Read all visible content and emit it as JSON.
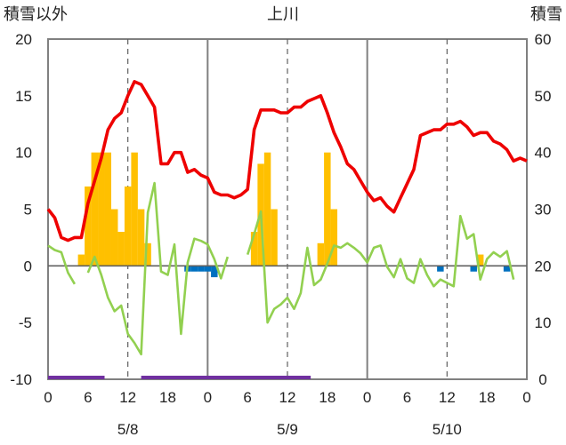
{
  "chart_data": {
    "type": "combo",
    "title": "上川",
    "left_axis_title": "積雪以外",
    "right_axis_title": "積雪",
    "left_ylim": [
      -10,
      20
    ],
    "right_ylim": [
      0,
      60
    ],
    "left_ticks": [
      "20",
      "15",
      "10",
      "5",
      "0",
      "-5",
      "-10"
    ],
    "right_ticks": [
      "60",
      "50",
      "40",
      "30",
      "20",
      "10",
      "0"
    ],
    "x_range_hours": [
      0,
      72
    ],
    "x_ticks": [
      {
        "h": 0,
        "label": "0"
      },
      {
        "h": 6,
        "label": "6"
      },
      {
        "h": 12,
        "label": "12"
      },
      {
        "h": 18,
        "label": "18"
      },
      {
        "h": 24,
        "label": "0"
      },
      {
        "h": 30,
        "label": "6"
      },
      {
        "h": 36,
        "label": "12"
      },
      {
        "h": 42,
        "label": "18"
      },
      {
        "h": 48,
        "label": "0"
      },
      {
        "h": 54,
        "label": "6"
      },
      {
        "h": 60,
        "label": "12"
      },
      {
        "h": 66,
        "label": "18"
      },
      {
        "h": 72,
        "label": "0"
      }
    ],
    "dates": [
      {
        "h": 12,
        "label": "5/8"
      },
      {
        "h": 36,
        "label": "5/9"
      },
      {
        "h": 60,
        "label": "5/10"
      }
    ],
    "day_boundaries_h": [
      24,
      48
    ],
    "noon_lines_h": [
      12,
      36,
      60
    ],
    "series": [
      {
        "name": "snow_depth",
        "type": "line",
        "axis": "right",
        "color": "#ee0000",
        "x": [
          0,
          1,
          2,
          3,
          4,
          5,
          6,
          7,
          8,
          9,
          10,
          11,
          12,
          13,
          14,
          15,
          16,
          17,
          18,
          19,
          20,
          21,
          22,
          23,
          24,
          25,
          26,
          27,
          28,
          29,
          30,
          31,
          32,
          33,
          34,
          35,
          36,
          37,
          38,
          39,
          40,
          41,
          42,
          43,
          44,
          45,
          46,
          47,
          48,
          49,
          50,
          51,
          52,
          53,
          54,
          55,
          56,
          57,
          58,
          59,
          60,
          61,
          62,
          63,
          64,
          65,
          66,
          67,
          68,
          69,
          70,
          71,
          72
        ],
        "values": [
          30,
          28.5,
          25,
          24.5,
          25,
          25,
          31,
          35,
          39,
          44,
          46,
          47,
          50,
          52.5,
          52,
          50,
          48,
          38,
          38,
          40,
          40,
          36.5,
          37,
          36,
          35.5,
          33,
          32.5,
          32.5,
          32,
          32.5,
          33.5,
          44,
          47.5,
          47.5,
          47.5,
          47,
          47,
          48,
          48,
          49,
          49.5,
          50,
          47,
          43.5,
          41,
          38,
          37,
          35,
          33,
          31.5,
          32,
          30.5,
          29.5,
          32,
          34.5,
          37,
          43,
          43.5,
          44,
          44,
          45,
          45,
          45.5,
          44.5,
          43,
          43.5,
          43.5,
          42,
          41.5,
          40.5,
          38.5,
          39,
          38.5
        ]
      },
      {
        "name": "wind_speed",
        "type": "line",
        "axis": "left",
        "color": "#92d050",
        "segments": [
          {
            "x": [
              0,
              1,
              2,
              3,
              4
            ],
            "values": [
              1.8,
              1.4,
              1.2,
              -0.6,
              -1.6
            ]
          },
          {
            "x": [
              6,
              7,
              8,
              9,
              10,
              11,
              12,
              13,
              14,
              15,
              16,
              17,
              18,
              19,
              20,
              21,
              22,
              23,
              24,
              25,
              26,
              27,
              28,
              29,
              30
            ],
            "values": [
              -0.6,
              0.8,
              -0.8,
              -2.8,
              -4.0,
              -3.5,
              -6.0,
              -6.8,
              -7.8,
              4.7,
              7.3,
              -0.5,
              -0.8,
              1.9,
              -6.0,
              0.3,
              2.4,
              2.2,
              1.9,
              0.6,
              -1.1,
              0.8,
              null,
              null,
              null
            ]
          },
          {
            "x": [
              30,
              31,
              32,
              33,
              34,
              35,
              36,
              37,
              38,
              39,
              40,
              41,
              42,
              43,
              44,
              45,
              46,
              47,
              48,
              49,
              50,
              51,
              52,
              53,
              54,
              55,
              56,
              57,
              58,
              59,
              60,
              61,
              62,
              63,
              64,
              65,
              66,
              67,
              68,
              69,
              70,
              71,
              72
            ],
            "values": [
              1.0,
              2.8,
              4.8,
              -5.0,
              -3.8,
              -3.4,
              -2.8,
              -3.8,
              -2.4,
              1.6,
              -1.7,
              -1.2,
              0.2,
              1.8,
              1.6,
              2.0,
              1.6,
              1.1,
              0.3,
              1.6,
              1.8,
              -0.1,
              -1.0,
              0.6,
              -1.1,
              -1.5,
              0.6,
              -0.8,
              -1.8,
              -1.2,
              -1.5,
              -1.8,
              4.4,
              2.4,
              2.8,
              -1.2,
              0.6,
              1.2,
              0.8,
              1.3,
              -1.2,
              null,
              null
            ]
          }
        ]
      },
      {
        "name": "snowfall",
        "type": "bar",
        "axis": "left",
        "color": "#ffc000",
        "x": [
          5,
          6,
          7,
          8,
          9,
          10,
          11,
          12,
          13,
          14,
          15,
          31,
          32,
          33,
          34,
          35,
          40,
          41,
          42,
          43,
          65,
          66
        ],
        "values": [
          1,
          7,
          10,
          10,
          10,
          5,
          3,
          7,
          10,
          5,
          2,
          3,
          9,
          10,
          5,
          0,
          0,
          2,
          10,
          5,
          1,
          0
        ]
      },
      {
        "name": "precip_neg",
        "type": "bar",
        "axis": "left",
        "color": "#0070c0",
        "x": [
          21,
          22,
          23,
          24,
          25,
          59,
          64,
          69
        ],
        "values": [
          -0.5,
          -0.5,
          -0.5,
          -0.5,
          -1.0,
          -0.5,
          -0.5,
          -0.5
        ]
      },
      {
        "name": "sunshine",
        "type": "band",
        "axis": "left",
        "color": "#7030a0",
        "ranges": [
          [
            0,
            8.5
          ],
          [
            14,
            39.5
          ]
        ]
      }
    ]
  }
}
